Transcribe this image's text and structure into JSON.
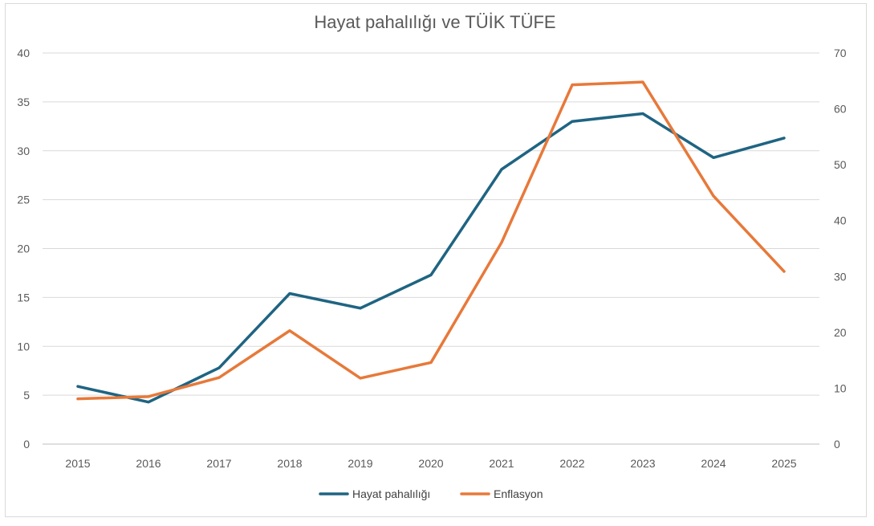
{
  "chart_data": {
    "type": "line",
    "title": "Hayat pahalılığı ve TÜİK TÜFE",
    "categories": [
      "2015",
      "2016",
      "2017",
      "2018",
      "2019",
      "2020",
      "2021",
      "2022",
      "2023",
      "2024",
      "2025"
    ],
    "series": [
      {
        "name": "Hayat pahalılığı",
        "axis": "left",
        "color": "#1f6482",
        "values": [
          5.9,
          4.3,
          7.8,
          15.4,
          13.9,
          17.3,
          28.1,
          33.0,
          33.8,
          29.3,
          31.3
        ]
      },
      {
        "name": "Enflasyon",
        "axis": "right",
        "color": "#e7793a",
        "values": [
          8.1,
          8.5,
          11.9,
          20.3,
          11.8,
          14.6,
          36.1,
          64.3,
          64.8,
          44.4,
          30.9
        ]
      }
    ],
    "y_left": {
      "min": 0,
      "max": 40,
      "ticks": [
        "0",
        "5",
        "10",
        "15",
        "20",
        "25",
        "30",
        "35",
        "40"
      ]
    },
    "y_right": {
      "min": 0,
      "max": 70,
      "ticks": [
        "0",
        "10",
        "20",
        "30",
        "40",
        "50",
        "60",
        "70"
      ]
    },
    "grid": true,
    "legend_position": "bottom"
  }
}
